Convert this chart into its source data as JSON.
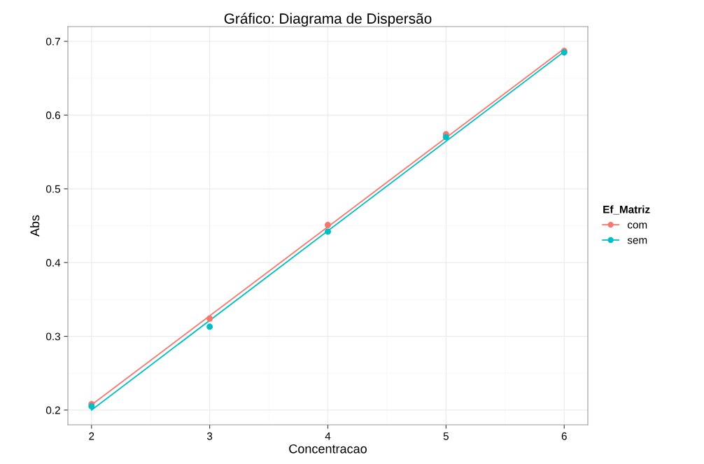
{
  "chart_data": {
    "type": "scatter",
    "title": "Gráfico: Diagrama de Dispersão",
    "xlabel": "Concentracao",
    "ylabel": "Abs",
    "legend_title": "Ef_Matriz",
    "series": [
      {
        "name": "com",
        "color": "#f8766d",
        "marker": "circle",
        "x": [
          2,
          3,
          4,
          5,
          6
        ],
        "values": [
          0.208,
          0.324,
          0.451,
          0.574,
          0.687
        ]
      },
      {
        "name": "sem",
        "color": "#00bfc4",
        "marker": "circle",
        "x": [
          2,
          3,
          4,
          5,
          6
        ],
        "values": [
          0.205,
          0.313,
          0.442,
          0.57,
          0.685
        ]
      },
      {
        "type": "line",
        "color": "#f8766d",
        "marker": "none",
        "x": [
          2,
          6
        ],
        "values": [
          0.207,
          0.69
        ]
      },
      {
        "type": "line",
        "color": "#00bfc4",
        "marker": "none",
        "x": [
          2,
          6
        ],
        "values": [
          0.2,
          0.686
        ]
      }
    ],
    "xlim": [
      1.8,
      6.2
    ],
    "ylim": [
      0.18,
      0.72
    ],
    "xticks": [
      2,
      3,
      4,
      5,
      6
    ],
    "yticks": [
      0.2,
      0.3,
      0.4,
      0.5,
      0.6,
      0.7
    ],
    "grid": true,
    "legend": "right"
  }
}
